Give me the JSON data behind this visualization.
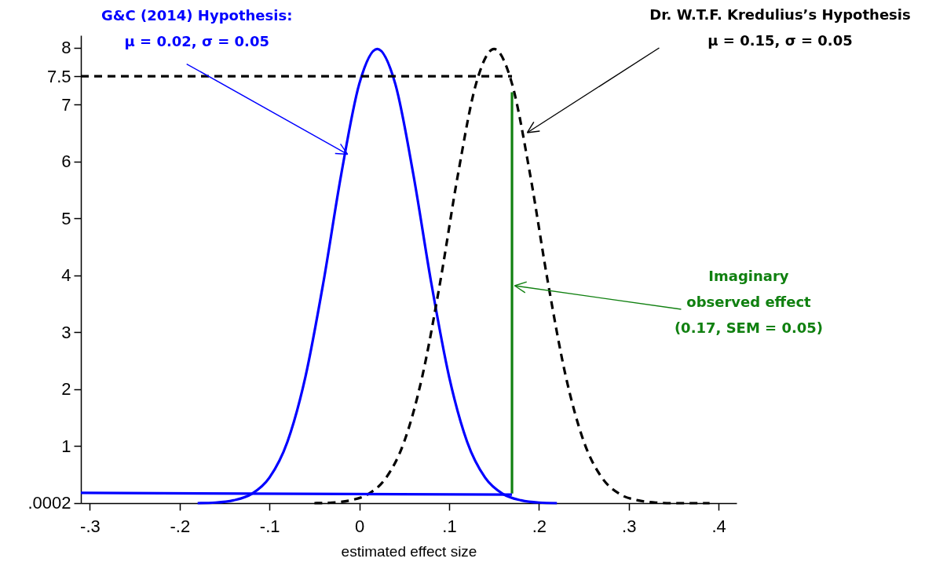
{
  "chart_data": {
    "type": "line",
    "xlabel": "estimated effect size",
    "xlim": [
      -0.31,
      0.42
    ],
    "ylim": [
      0,
      8.22
    ],
    "xticks": [
      {
        "value": -0.3,
        "label": "-.3"
      },
      {
        "value": -0.2,
        "label": "-.2"
      },
      {
        "value": -0.1,
        "label": "-.1"
      },
      0,
      {
        "value": 0.1,
        "label": ".1"
      },
      {
        "value": 0.2,
        "label": ".2"
      },
      {
        "value": 0.3,
        "label": ".3"
      },
      {
        "value": 0.4,
        "label": ".4"
      }
    ],
    "yticks": [
      {
        "value": 0.0002,
        "label": ".0002"
      },
      1,
      2,
      3,
      4,
      5,
      6,
      7,
      7.5,
      8
    ],
    "grid": false,
    "series": [
      {
        "color": "#0000ff",
        "line_style": "solid",
        "x": [
          -0.18,
          -0.16,
          -0.14,
          -0.12,
          -0.1,
          -0.08,
          -0.06,
          -0.04,
          -0.02,
          0,
          0.02,
          0.04,
          0.06,
          0.08,
          0.1,
          0.12,
          0.14,
          0.16,
          0.18,
          0.2,
          0.22
        ],
        "values": [
          0,
          0.01,
          0.05,
          0.16,
          0.45,
          1.08,
          2.22,
          3.88,
          5.79,
          7.37,
          7.98,
          7.37,
          5.79,
          3.88,
          2.22,
          1.08,
          0.45,
          0.16,
          0.05,
          0.01,
          0
        ]
      },
      {
        "color": "#000000",
        "line_style": "dashed",
        "x": [
          -0.05,
          -0.03,
          -0.01,
          0.01,
          0.03,
          0.05,
          0.07,
          0.09,
          0.11,
          0.13,
          0.15,
          0.17,
          0.19,
          0.21,
          0.23,
          0.25,
          0.27,
          0.29,
          0.31,
          0.33,
          0.35,
          0.37,
          0.39
        ],
        "values": [
          0,
          0.01,
          0.05,
          0.16,
          0.45,
          1.08,
          2.22,
          3.88,
          5.79,
          7.37,
          7.98,
          7.37,
          5.79,
          3.88,
          2.22,
          1.08,
          0.45,
          0.16,
          0.05,
          0.01,
          0,
          0,
          0
        ]
      },
      {
        "color": "#108010",
        "line_style": "solid",
        "x": [
          0.17,
          0.17
        ],
        "values": [
          0.17,
          7.22
        ]
      },
      {
        "color": "#0000ff",
        "line_style": "solid",
        "x": [
          -0.31,
          0.17
        ],
        "values": [
          0.18,
          0.15
        ]
      },
      {
        "color": "#000000",
        "line_style": "dashed",
        "x": [
          -0.31,
          0.17
        ],
        "values": [
          7.5,
          7.5
        ]
      }
    ],
    "annotations": [
      {
        "text": "G&C (2014) Hypothesis:\nμ = 0.02, σ = 0.05",
        "x": -0.013,
        "y": 6.13
      },
      {
        "text": "Dr. W.T.F. Kredulius’s Hypothesis\nμ = 0.15, σ = 0.05",
        "x": 0.187,
        "y": 6.51
      },
      {
        "text": "Imaginary\nobserved effect\n(0.17, SEM = 0.05)",
        "x": 0.173,
        "y": 3.82
      }
    ]
  }
}
